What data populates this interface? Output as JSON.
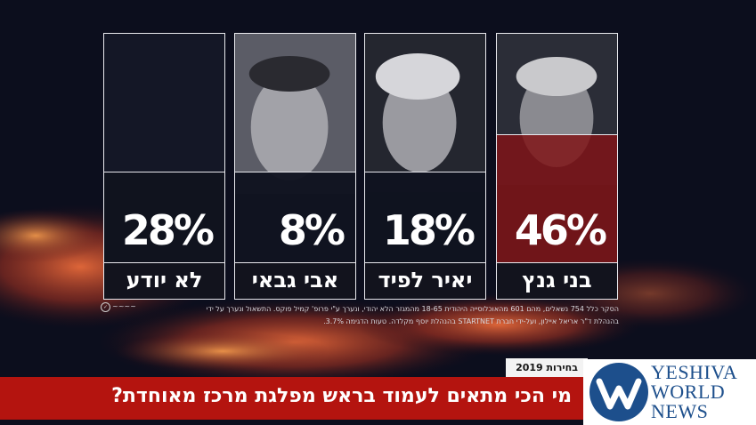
{
  "chart_data": {
    "type": "bar",
    "categories": [
      "בני גנץ",
      "יאיר לפיד",
      "אבי גבאי",
      "לא יודע"
    ],
    "values": [
      46,
      18,
      8,
      28
    ],
    "value_labels": [
      "46%",
      "18%",
      "8%",
      "28%"
    ],
    "ylim": [
      0,
      100
    ],
    "colors": {
      "leader": "#7f1418",
      "others": "#10131f"
    }
  },
  "footnote": {
    "line1": "הסקר כלל 754 נשאלים, מהם 601 מהאוכלוסייה היהודית 18-65 מהמגזר הלא יהודי, ונערך ע\"י פרופ' קמיל פוקס. התשאול  ונערך על ידי",
    "line2": "בהנהלת ד\"ר אריאל איילון, ועל-ידי חברת  STARTNET  בהנהלת יוסף מקלדה. טעות הדגימה 3.7%."
  },
  "banner": {
    "tag": "בחירות 2019",
    "question": "מי הכי מתאים לעמוד בראש מפלגת מרכז מאוחדת?"
  },
  "logo": {
    "line1": "YESHIVA",
    "line2": "WORLD",
    "line3": "NEWS"
  }
}
